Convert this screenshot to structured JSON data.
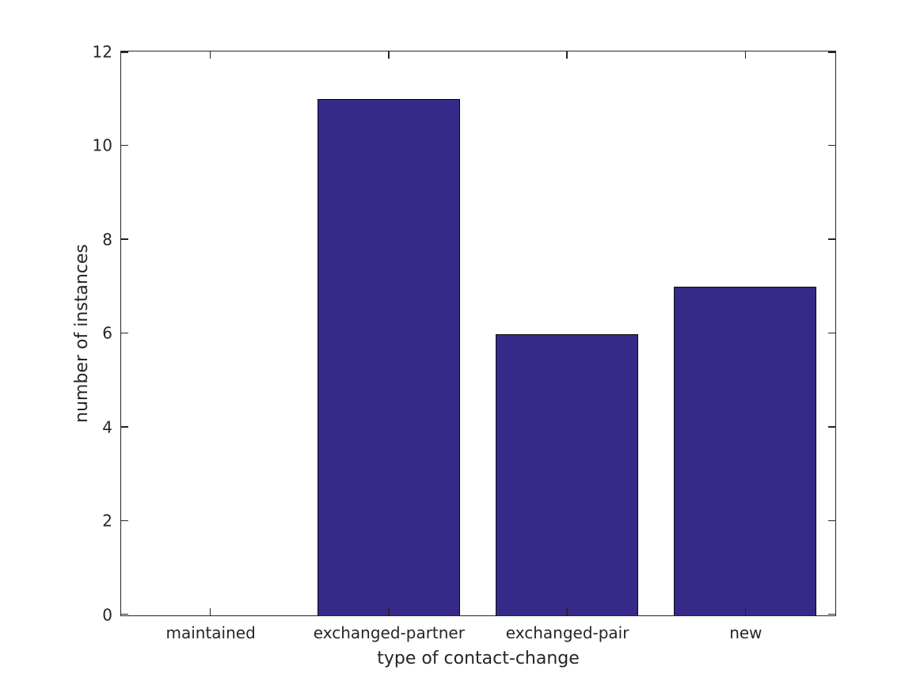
{
  "chart_data": {
    "type": "bar",
    "categories": [
      "maintained",
      "exchanged-partner",
      "exchanged-pair",
      "new"
    ],
    "values": [
      0,
      11,
      6,
      7
    ],
    "title": "",
    "xlabel": "type of contact-change",
    "ylabel": "number of instances",
    "ylim": [
      0,
      12
    ],
    "yticks": [
      0,
      2,
      4,
      6,
      8,
      10,
      12
    ],
    "bar_width_fraction": 0.8,
    "bar_color": "#352a87",
    "bar_edge_color": "#0a0a0a",
    "axis_color": "#262626",
    "grid": false,
    "legend": null,
    "tick_direction": "in",
    "box": true
  }
}
